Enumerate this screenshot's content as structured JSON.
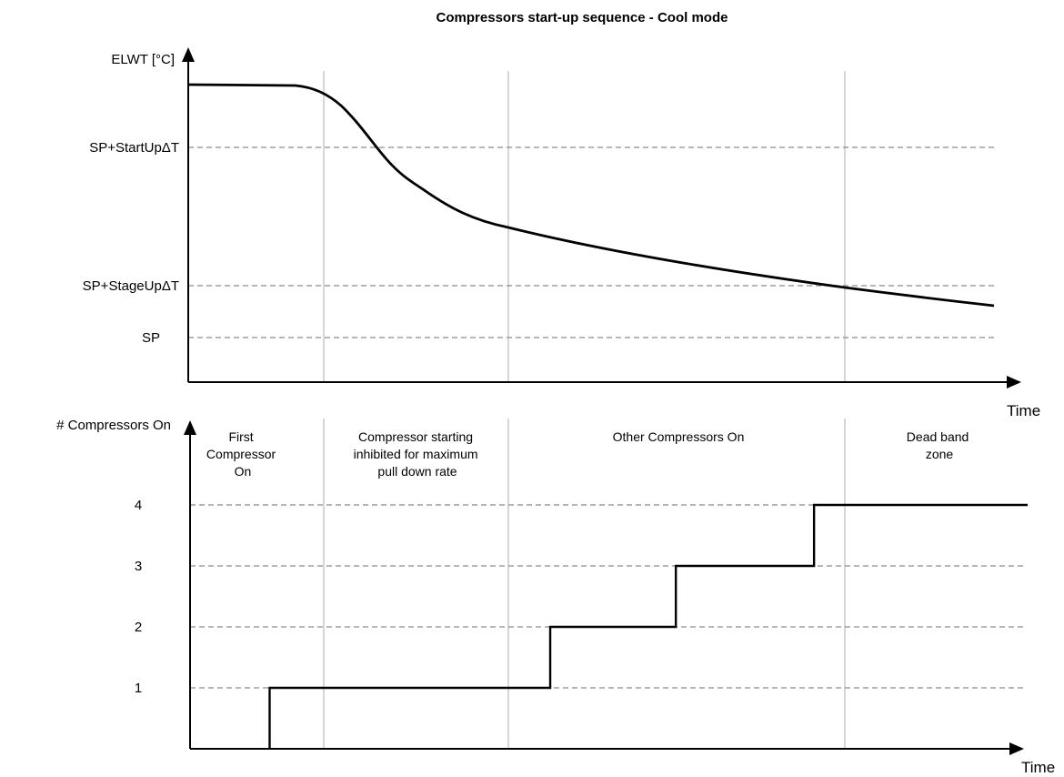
{
  "chart_data": [
    {
      "type": "line",
      "title": "Compressors start-up sequence - Cool mode",
      "ylabel": "ELWT [°C]",
      "xlabel": "Time",
      "y_reference_levels": [
        {
          "label": "SP+StartUpΔT"
        },
        {
          "label": "SP+StageUpΔT"
        },
        {
          "label": "SP"
        }
      ],
      "series": [
        {
          "x": [
            0,
            0.165,
            0.2,
            0.35,
            0.45,
            0.6,
            0.8,
            1.0
          ],
          "y": [
            1.38,
            1.37,
            1.28,
            0.74,
            0.56,
            0.38,
            0.19,
            0.05
          ]
        }
      ]
    },
    {
      "type": "line",
      "ylabel": "# Compressors On",
      "xlabel": "Time",
      "y_ticks": [
        "1",
        "2",
        "3",
        "4"
      ],
      "ylim": [
        0,
        4
      ],
      "zones": [
        {
          "label_lines": [
            "First",
            "Compressor",
            "On"
          ]
        },
        {
          "label_lines": [
            "Compressor starting",
            "inhibited for maximum",
            "pull down rate"
          ]
        },
        {
          "label_lines": [
            "Other Compressors On"
          ]
        },
        {
          "label_lines": [
            "Dead band",
            "zone"
          ]
        }
      ],
      "series": [
        {
          "step": true,
          "x": [
            0.095,
            0.43,
            0.58,
            0.745,
            1.0
          ],
          "y": [
            1,
            2,
            3,
            4,
            4
          ]
        }
      ]
    }
  ]
}
